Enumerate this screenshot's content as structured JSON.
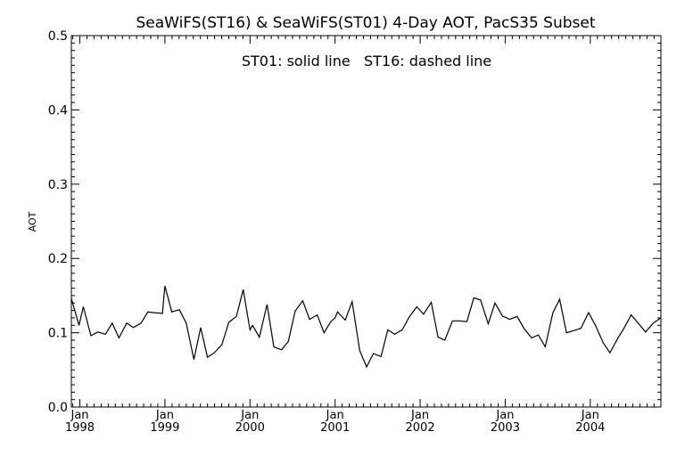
{
  "chart_data": {
    "type": "line",
    "title": "SeaWiFS(ST16) & SeaWiFS(ST01) 4-Day AOT, PacS35 Subset",
    "legend_text": "ST01: solid line   ST16: dashed line",
    "ylabel": "AOT",
    "xlabel": "",
    "ylim": [
      0.0,
      0.5
    ],
    "xlim": [
      1997.9,
      2004.83
    ],
    "yticks": [
      "0.0",
      "0.1",
      "0.2",
      "0.3",
      "0.4",
      "0.5"
    ],
    "xticks": [
      {
        "month": "Jan",
        "year": "1998"
      },
      {
        "month": "Jan",
        "year": "1999"
      },
      {
        "month": "Jan",
        "year": "2000"
      },
      {
        "month": "Jan",
        "year": "2001"
      },
      {
        "month": "Jan",
        "year": "2002"
      },
      {
        "month": "Jan",
        "year": "2003"
      },
      {
        "month": "Jan",
        "year": "2004"
      }
    ],
    "grid": false,
    "series": [
      {
        "name": "ST01",
        "style": "solid",
        "x": [
          1997.9,
          1997.99,
          1998.04,
          1998.13,
          1998.21,
          1998.3,
          1998.38,
          1998.46,
          1998.55,
          1998.63,
          1998.72,
          1998.8,
          1998.88,
          1998.97,
          1999.0,
          1999.08,
          1999.17,
          1999.25,
          1999.34,
          1999.42,
          1999.5,
          1999.58,
          1999.67,
          1999.75,
          1999.84,
          1999.92,
          2000.0,
          2000.03,
          2000.11,
          2000.2,
          2000.28,
          2000.37,
          2000.45,
          2000.53,
          2000.62,
          2000.7,
          2000.79,
          2000.87,
          2000.95,
          2001.0,
          2001.03,
          2001.12,
          2001.2,
          2001.29,
          2001.37,
          2001.45,
          2001.54,
          2001.62,
          2001.7,
          2001.79,
          2001.87,
          2001.96,
          2002.04,
          2002.13,
          2002.21,
          2002.29,
          2002.38,
          2002.46,
          2002.55,
          2002.63,
          2002.71,
          2002.8,
          2002.88,
          2002.97,
          2003.0,
          2003.05,
          2003.14,
          2003.22,
          2003.31,
          2003.39,
          2003.47,
          2003.56,
          2003.64,
          2003.72,
          2003.81,
          2003.89,
          2003.98,
          2004.06,
          2004.15,
          2004.23,
          2004.32,
          2004.4,
          2004.48,
          2004.57,
          2004.65,
          2004.74,
          2004.83
        ],
        "y": [
          0.146,
          0.11,
          0.135,
          0.096,
          0.101,
          0.098,
          0.113,
          0.093,
          0.113,
          0.107,
          0.113,
          0.128,
          0.127,
          0.126,
          0.163,
          0.128,
          0.131,
          0.113,
          0.064,
          0.107,
          0.067,
          0.073,
          0.084,
          0.114,
          0.122,
          0.158,
          0.104,
          0.11,
          0.094,
          0.138,
          0.081,
          0.077,
          0.088,
          0.129,
          0.143,
          0.118,
          0.124,
          0.1,
          0.115,
          0.12,
          0.128,
          0.117,
          0.142,
          0.076,
          0.054,
          0.072,
          0.068,
          0.104,
          0.098,
          0.104,
          0.121,
          0.135,
          0.125,
          0.141,
          0.094,
          0.09,
          0.116,
          0.116,
          0.115,
          0.147,
          0.144,
          0.112,
          0.14,
          0.122,
          0.121,
          0.118,
          0.122,
          0.106,
          0.093,
          0.097,
          0.081,
          0.127,
          0.145,
          0.1,
          0.103,
          0.106,
          0.127,
          0.11,
          0.087,
          0.073,
          0.092,
          0.107,
          0.124,
          0.112,
          0.101,
          0.113,
          0.12
        ]
      }
    ]
  }
}
